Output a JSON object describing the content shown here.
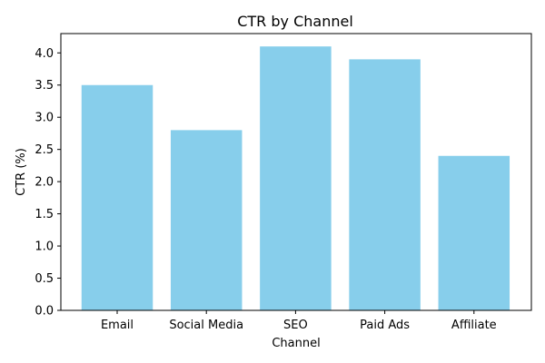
{
  "chart_data": {
    "type": "bar",
    "title": "CTR by Channel",
    "xlabel": "Channel",
    "ylabel": "CTR (%)",
    "categories": [
      "Email",
      "Social Media",
      "SEO",
      "Paid Ads",
      "Affiliate"
    ],
    "values": [
      3.5,
      2.8,
      4.1,
      3.9,
      2.4
    ],
    "ylim": [
      0,
      4.3
    ],
    "yticks": [
      "0.0",
      "0.5",
      "1.0",
      "1.5",
      "2.0",
      "2.5",
      "3.0",
      "3.5",
      "4.0"
    ],
    "bar_color": "#87CEEB",
    "grid": false,
    "legend": "none"
  }
}
